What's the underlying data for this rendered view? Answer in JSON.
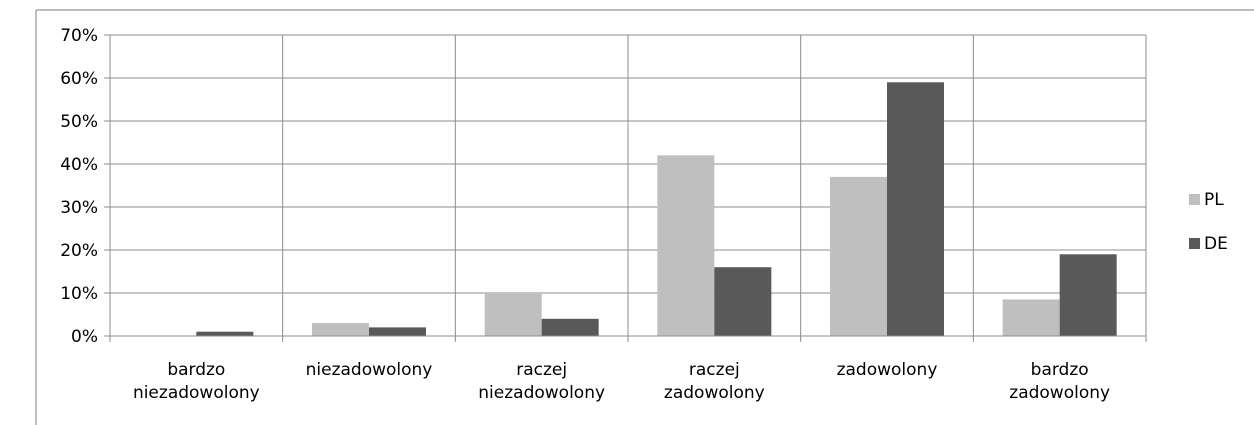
{
  "chart_data": {
    "type": "bar",
    "categories": [
      [
        "bardzo",
        "niezadowolony"
      ],
      [
        "niezadowolony"
      ],
      [
        "raczej",
        "niezadowolony"
      ],
      [
        "raczej",
        "zadowolony"
      ],
      [
        "zadowolony"
      ],
      [
        "bardzo",
        "zadowolony"
      ]
    ],
    "series": [
      {
        "name": "PL",
        "color": "#bfbfbf",
        "values": [
          0,
          3,
          10,
          42,
          37,
          8.5
        ]
      },
      {
        "name": "DE",
        "color": "#595959",
        "values": [
          1,
          2,
          4,
          16,
          59,
          19
        ]
      }
    ],
    "ylim": [
      0,
      70
    ],
    "yticks": [
      0,
      10,
      20,
      30,
      40,
      50,
      60,
      70
    ],
    "ytick_labels": [
      "0%",
      "10%",
      "20%",
      "30%",
      "40%",
      "50%",
      "60%",
      "70%"
    ],
    "grid": true,
    "legend_position": "right"
  }
}
